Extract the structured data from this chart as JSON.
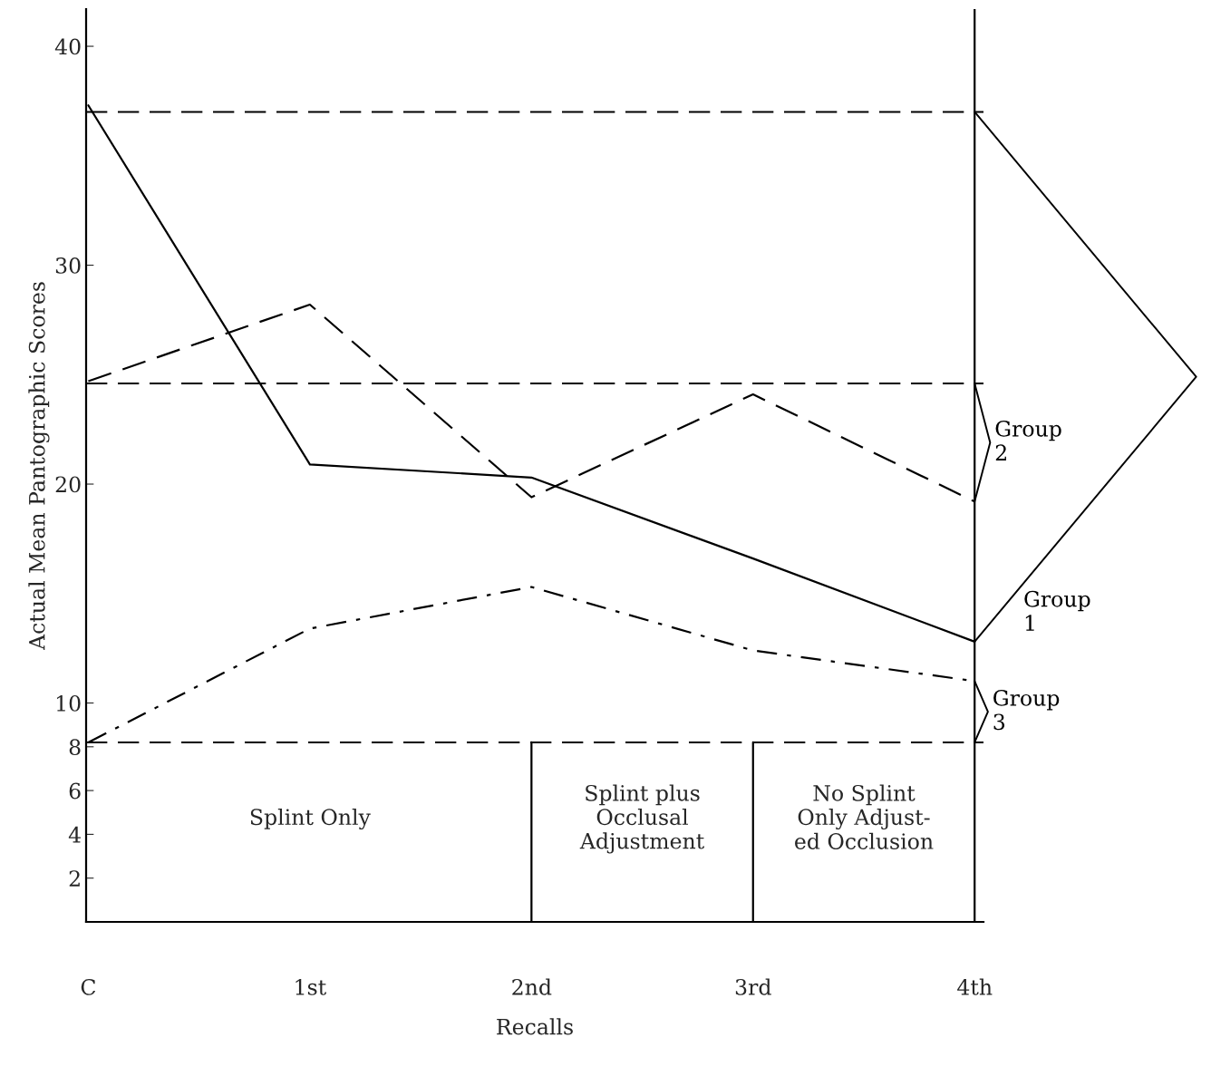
{
  "chart_data": {
    "type": "line",
    "xlabel": "Recalls",
    "ylabel": "Actual Mean Pantographic Scores",
    "categories": [
      "C",
      "1st",
      "2nd",
      "3rd",
      "4th"
    ],
    "series": [
      {
        "name": "Group 1",
        "color": "#000000",
        "line_style": "solid",
        "values": [
          37.3,
          20.9,
          20.3,
          16.6,
          12.8
        ]
      },
      {
        "name": "Group 2",
        "color": "#000000",
        "line_style": "dashed",
        "values": [
          24.7,
          28.2,
          19.4,
          24.1,
          19.2
        ]
      },
      {
        "name": "Group 3",
        "color": "#000000",
        "line_style": "dashdot",
        "values": [
          8.2,
          13.4,
          15.3,
          12.4,
          11.0
        ]
      }
    ],
    "ref_lines": [
      {
        "axis": "y",
        "value": 37.0,
        "color": "#000000",
        "line_style": "dashed"
      },
      {
        "axis": "y",
        "value": 24.6,
        "color": "#000000",
        "line_style": "dashed"
      },
      {
        "axis": "y",
        "value": 8.2,
        "color": "#000000",
        "line_style": "dashed"
      },
      {
        "axis": "x",
        "value": "2nd",
        "color": "#000000",
        "line_style": "solid"
      },
      {
        "axis": "x",
        "value": "3rd",
        "color": "#000000",
        "line_style": "solid"
      },
      {
        "axis": "x",
        "value": "4th",
        "color": "#000000",
        "line_style": "solid"
      }
    ],
    "annotations": [
      "Splint Only",
      "Splint plus\nOcclusal\nAdjustment",
      "No Splint\nOnly Adjust-\ned Occlusion"
    ],
    "ylim": [
      0,
      41.7
    ],
    "yticks": [
      2,
      4,
      6,
      8,
      10,
      20,
      30,
      40
    ],
    "grid": false,
    "legend": false,
    "marker": "none"
  }
}
